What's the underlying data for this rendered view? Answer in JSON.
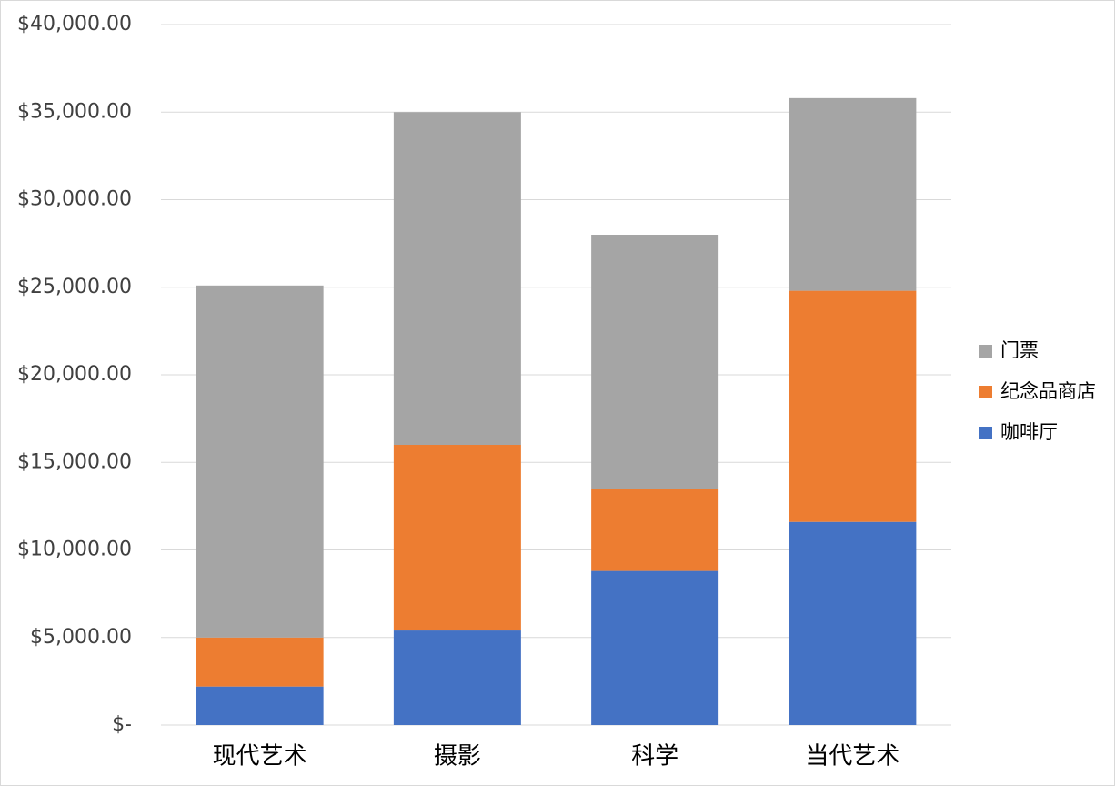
{
  "chart_data": {
    "type": "stacked_bar",
    "categories": [
      "现代艺术",
      "摄影",
      "科学",
      "当代艺术"
    ],
    "series": [
      {
        "name": "咖啡厅",
        "color": "#4472c4",
        "values": [
          2200,
          5400,
          8800,
          11600
        ]
      },
      {
        "name": "纪念品商店",
        "color": "#ed7d31",
        "values": [
          2800,
          10600,
          4700,
          13200
        ]
      },
      {
        "name": "门票",
        "color": "#a5a5a5",
        "values": [
          20100,
          19000,
          14500,
          11000
        ]
      }
    ],
    "ylim": [
      0,
      40000
    ],
    "yticks": [
      {
        "value": 0,
        "label": "$-"
      },
      {
        "value": 5000,
        "label": "$5,000.00"
      },
      {
        "value": 10000,
        "label": "$10,000.00"
      },
      {
        "value": 15000,
        "label": "$15,000.00"
      },
      {
        "value": 20000,
        "label": "$20,000.00"
      },
      {
        "value": 25000,
        "label": "$25,000.00"
      },
      {
        "value": 30000,
        "label": "$30,000.00"
      },
      {
        "value": 35000,
        "label": "$35,000.00"
      },
      {
        "value": 40000,
        "label": "$40,000.00"
      }
    ],
    "grid": true,
    "legend": "right"
  }
}
